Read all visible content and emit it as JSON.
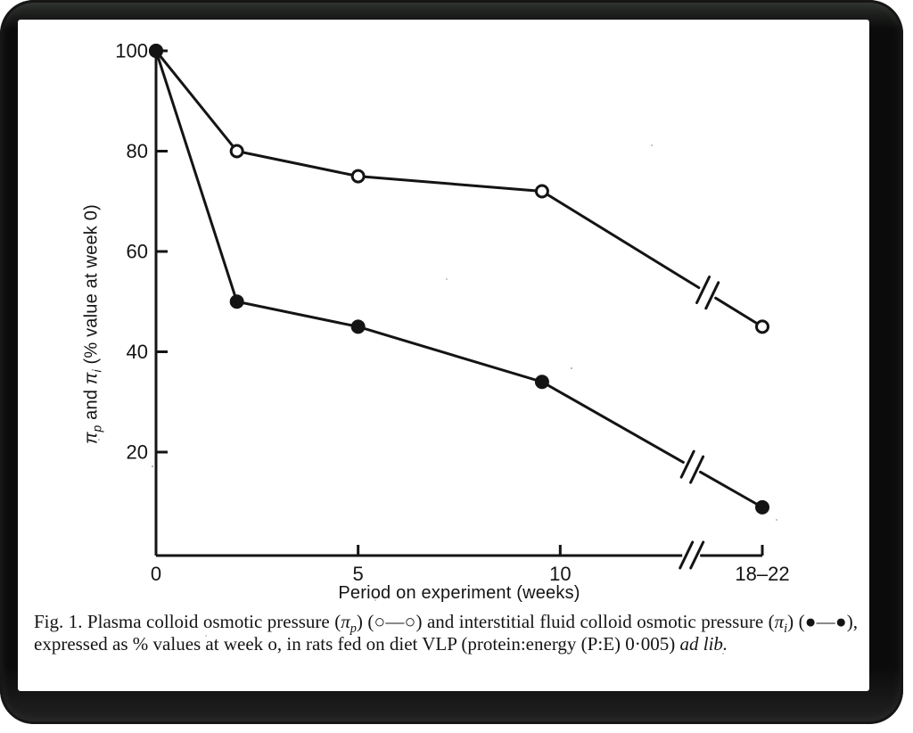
{
  "chart_data": {
    "type": "line",
    "title": "",
    "xlabel": "Period on experiment (weeks)",
    "ylabel": "πp and πi (% value at week 0)",
    "ylabel_runs": [
      {
        "text": "π",
        "italic": true
      },
      {
        "text": "p",
        "italic": true,
        "sub": true
      },
      {
        "text": " and "
      },
      {
        "text": "π",
        "italic": true
      },
      {
        "text": "i",
        "italic": true,
        "sub": true
      },
      {
        "text": " (% value at week 0)"
      }
    ],
    "x_axis": {
      "tick_labels": [
        "0",
        "5",
        "10",
        "18–22"
      ],
      "tick_axis_positions": [
        0,
        5,
        10,
        15
      ],
      "axis_range": [
        0,
        15
      ],
      "break_axis_position": 13.24,
      "note_last_tick": "18–22 weeks plotted after axis break"
    },
    "y_axis": {
      "tick_values": [
        100,
        80,
        60,
        40,
        20
      ],
      "range": [
        0,
        100
      ],
      "grid": false
    },
    "legend_position": "none",
    "series": [
      {
        "name": "Plasma colloid osmotic pressure (πp)",
        "marker": "open-circle",
        "x_weeks": [
          "0",
          "2",
          "5",
          "9.5",
          "18–22"
        ],
        "x_axis_positions": [
          0,
          2,
          5,
          9.55,
          15
        ],
        "values": [
          100,
          80,
          75,
          72,
          45
        ],
        "line_break": {
          "segment_start_index": 3,
          "t": 0.75
        }
      },
      {
        "name": "Interstitial fluid colloid osmotic pressure (πi)",
        "marker": "filled-circle",
        "x_weeks": [
          "0",
          "2",
          "5",
          "9.5",
          "18–22"
        ],
        "x_axis_positions": [
          0,
          2,
          5,
          9.55,
          15
        ],
        "values": [
          100,
          50,
          45,
          34,
          9
        ],
        "line_break": {
          "segment_start_index": 3,
          "t": 0.68
        }
      }
    ],
    "ink_color": "#141414",
    "paper_color": "#ffffff"
  },
  "caption": {
    "runs": [
      {
        "text": "Fig. 1. Plasma colloid osmotic pressure ("
      },
      {
        "text": "π",
        "italic": true
      },
      {
        "text": "p",
        "italic": true,
        "sub": true
      },
      {
        "text": ") (○—○) and interstitial fluid colloid osmotic pressure ("
      },
      {
        "text": "π",
        "italic": true
      },
      {
        "text": "i",
        "italic": true,
        "sub": true
      },
      {
        "text": ") (●—●), expressed as % values at week o, in rats fed on diet VLP (protein:energy (P:E) 0·005) "
      },
      {
        "text": "ad lib.",
        "italic": true
      }
    ]
  }
}
